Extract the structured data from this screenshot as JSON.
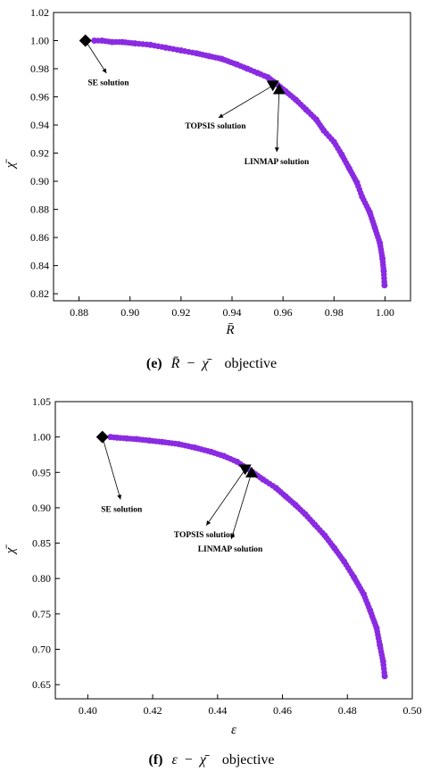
{
  "colors": {
    "series": "#8a2be2",
    "marker": "#000000",
    "axis": "#000000"
  },
  "chart_data": [
    {
      "type": "scatter",
      "panel_caption": {
        "letter": "(e)",
        "x_symbol": "R̄",
        "minus": "−",
        "y_symbol": "χ̄",
        "word": "objective"
      },
      "xlabel": "R̄",
      "ylabel": "χ̄",
      "xlim": [
        0.87,
        1.01
      ],
      "ylim": [
        0.815,
        1.02
      ],
      "xticks": [
        "0.88",
        "0.90",
        "0.92",
        "0.94",
        "0.96",
        "0.98",
        "1.00"
      ],
      "xtick_values": [
        0.88,
        0.9,
        0.92,
        0.94,
        0.96,
        0.98,
        1.0
      ],
      "yticks": [
        "0.82",
        "0.84",
        "0.86",
        "0.88",
        "0.90",
        "0.92",
        "0.94",
        "0.96",
        "0.98",
        "1.00",
        "1.02"
      ],
      "ytick_values": [
        0.82,
        0.84,
        0.86,
        0.88,
        0.9,
        0.92,
        0.94,
        0.96,
        0.98,
        1.0,
        1.02
      ],
      "grid": false,
      "series": [
        {
          "values": [
            [
              0.886,
              1.0
            ],
            [
              0.889,
              1.0
            ],
            [
              0.893,
              0.999
            ],
            [
              0.897,
              0.999
            ],
            [
              0.902,
              0.998
            ],
            [
              0.908,
              0.997
            ],
            [
              0.914,
              0.995
            ],
            [
              0.92,
              0.993
            ],
            [
              0.926,
              0.991
            ],
            [
              0.931,
              0.989
            ],
            [
              0.936,
              0.987
            ],
            [
              0.942,
              0.983
            ],
            [
              0.946,
              0.98
            ],
            [
              0.95,
              0.977
            ],
            [
              0.954,
              0.974
            ],
            [
              0.957,
              0.97
            ],
            [
              0.961,
              0.964
            ],
            [
              0.965,
              0.958
            ],
            [
              0.969,
              0.951
            ],
            [
              0.973,
              0.944
            ],
            [
              0.976,
              0.936
            ],
            [
              0.98,
              0.928
            ],
            [
              0.983,
              0.919
            ],
            [
              0.986,
              0.909
            ],
            [
              0.989,
              0.899
            ],
            [
              0.991,
              0.889
            ],
            [
              0.994,
              0.878
            ],
            [
              0.996,
              0.867
            ],
            [
              0.998,
              0.856
            ],
            [
              0.999,
              0.845
            ],
            [
              0.9995,
              0.836
            ],
            [
              0.9998,
              0.826
            ]
          ]
        }
      ],
      "special_points": [
        {
          "label": "SE solution",
          "marker": "diamond",
          "x": 0.8825,
          "y": 1.0,
          "label_value": [
            0.8915,
            0.9747
          ]
        },
        {
          "label": "TOPSIS solution",
          "marker": "triangle-down",
          "x": 0.956,
          "y": 0.968,
          "label_value": [
            0.9335,
            0.9438
          ]
        },
        {
          "label": "LINMAP solution",
          "marker": "triangle-up",
          "x": 0.9585,
          "y": 0.9655,
          "label_value": [
            0.9575,
            0.9183
          ]
        }
      ]
    },
    {
      "type": "scatter",
      "panel_caption": {
        "letter": "(f)",
        "x_symbol": "ε",
        "minus": "−",
        "y_symbol": "χ̄",
        "word": "objective"
      },
      "xlabel": "ε",
      "ylabel": "χ̄",
      "xlim": [
        0.39,
        0.5
      ],
      "ylim": [
        0.63,
        1.05
      ],
      "xticks": [
        "0.40",
        "0.42",
        "0.44",
        "0.46",
        "0.48",
        "0.50"
      ],
      "xtick_values": [
        0.4,
        0.42,
        0.44,
        0.46,
        0.48,
        0.5
      ],
      "yticks": [
        "0.65",
        "0.70",
        "0.75",
        "0.80",
        "0.85",
        "0.90",
        "0.95",
        "1.00",
        "1.05"
      ],
      "ytick_values": [
        0.65,
        0.7,
        0.75,
        0.8,
        0.85,
        0.9,
        0.95,
        1.0,
        1.05
      ],
      "grid": false,
      "series": [
        {
          "values": [
            [
              0.407,
              1.0
            ],
            [
              0.409,
              0.999
            ],
            [
              0.412,
              0.998
            ],
            [
              0.415,
              0.997
            ],
            [
              0.419,
              0.995
            ],
            [
              0.423,
              0.993
            ],
            [
              0.428,
              0.99
            ],
            [
              0.433,
              0.985
            ],
            [
              0.438,
              0.979
            ],
            [
              0.442,
              0.973
            ],
            [
              0.446,
              0.965
            ],
            [
              0.45,
              0.953
            ],
            [
              0.454,
              0.94
            ],
            [
              0.458,
              0.928
            ],
            [
              0.461,
              0.916
            ],
            [
              0.464,
              0.904
            ],
            [
              0.467,
              0.891
            ],
            [
              0.47,
              0.876
            ],
            [
              0.473,
              0.861
            ],
            [
              0.476,
              0.843
            ],
            [
              0.479,
              0.824
            ],
            [
              0.482,
              0.802
            ],
            [
              0.485,
              0.778
            ],
            [
              0.487,
              0.755
            ],
            [
              0.489,
              0.73
            ],
            [
              0.49,
              0.706
            ],
            [
              0.491,
              0.683
            ],
            [
              0.4915,
              0.662
            ]
          ]
        }
      ],
      "special_points": [
        {
          "label": "SE solution",
          "marker": "diamond",
          "x": 0.4045,
          "y": 1.0,
          "label_value": [
            0.4104,
            0.9069
          ]
        },
        {
          "label": "TOPSIS solution",
          "marker": "triangle-down",
          "x": 0.4485,
          "y": 0.954,
          "label_value": [
            0.4359,
            0.8709
          ]
        },
        {
          "label": "LINMAP solution",
          "marker": "triangle-up",
          "x": 0.4505,
          "y": 0.95,
          "label_value": [
            0.4439,
            0.8509
          ]
        }
      ]
    }
  ]
}
